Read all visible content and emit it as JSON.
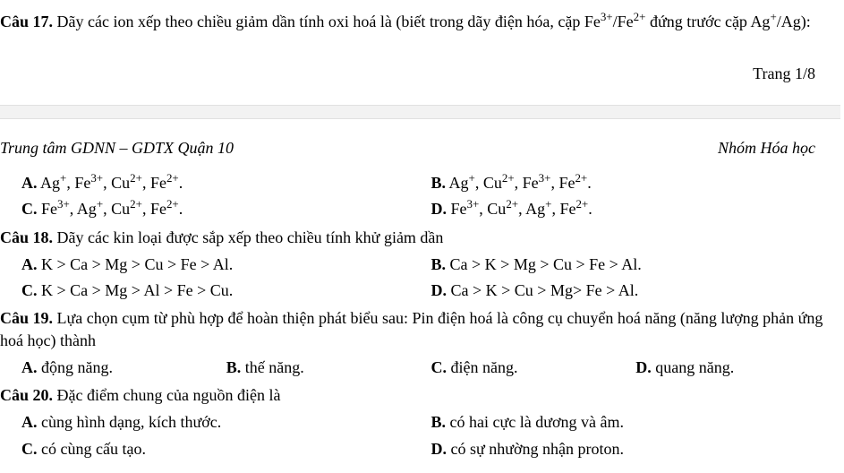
{
  "q17": {
    "label": "Câu 17.",
    "text_parts": [
      "Dãy các ion xếp theo chiều giảm dần tính oxi hoá là (biết trong dãy điện hóa, cặp Fe",
      "3+",
      "/Fe",
      "2+",
      " đứng trước cặp Ag",
      "+",
      "/Ag):"
    ],
    "choices": [
      {
        "label": "A.",
        "ions": [
          "Ag",
          "+",
          ", Fe",
          "3+",
          ", Cu",
          "2+",
          ", Fe",
          "2+",
          "."
        ]
      },
      {
        "label": "B.",
        "ions": [
          "Ag",
          "+",
          ", Cu",
          "2+",
          ", Fe",
          "3+",
          ", Fe",
          "2+",
          "."
        ]
      },
      {
        "label": "C.",
        "ions": [
          "Fe",
          "3+",
          ", Ag",
          "+",
          ", Cu",
          "2+",
          ", Fe",
          "2+",
          "."
        ]
      },
      {
        "label": "D.",
        "ions": [
          "Fe",
          "3+",
          ", Cu",
          "2+",
          ", Ag",
          "+",
          ", Fe",
          "2+",
          "."
        ]
      }
    ]
  },
  "page_counter": "Trang 1/8",
  "header_left": "Trung tâm GDNN – GDTX Quận 10",
  "header_right": "Nhóm Hóa học",
  "q18": {
    "label": "Câu 18.",
    "text": "Dãy các kin loại được sắp xếp theo chiều tính khử giảm dần",
    "choices": [
      {
        "label": "A.",
        "text": "K > Ca > Mg > Cu > Fe > Al."
      },
      {
        "label": "B.",
        "text": "Ca > K > Mg > Cu > Fe > Al."
      },
      {
        "label": "C.",
        "text": "K > Ca > Mg > Al > Fe > Cu."
      },
      {
        "label": "D.",
        "text": "Ca > K > Cu > Mg> Fe > Al."
      }
    ]
  },
  "q19": {
    "label": "Câu 19.",
    "text": "Lựa chọn cụm từ phù hợp để hoàn thiện phát biểu sau: Pin điện hoá là công cụ chuyển hoá năng (năng lượng phản ứng hoá học) thành",
    "choices": [
      {
        "label": "A.",
        "text": "động năng."
      },
      {
        "label": "B.",
        "text": "thế năng."
      },
      {
        "label": "C.",
        "text": "điện năng."
      },
      {
        "label": "D.",
        "text": "quang năng."
      }
    ]
  },
  "q20": {
    "label": "Câu 20.",
    "text": "Đặc điểm chung của nguồn điện là",
    "choices": [
      {
        "label": "A.",
        "text": "cùng hình dạng, kích thước."
      },
      {
        "label": "B.",
        "text": "có hai cực là dương và âm."
      },
      {
        "label": "C.",
        "text": "có cùng cấu tạo."
      },
      {
        "label": "D.",
        "text": "có sự nhường nhận proton."
      }
    ]
  }
}
